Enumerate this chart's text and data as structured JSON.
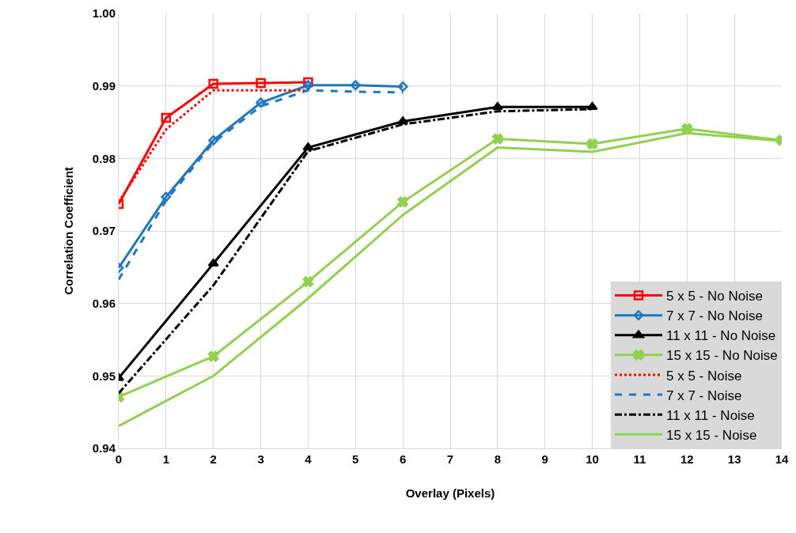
{
  "chart_data": {
    "type": "line",
    "xlabel": "Overlay (Pixels)",
    "ylabel": "Correlation Coefficient",
    "xlim": [
      0,
      14
    ],
    "xticks": [
      0,
      1,
      2,
      3,
      4,
      5,
      6,
      7,
      8,
      9,
      10,
      11,
      12,
      13,
      14
    ],
    "ylim": [
      0.94,
      1.0
    ],
    "yticks": [
      {
        "value": 0.94,
        "label": "0.94"
      },
      {
        "value": 0.95,
        "label": "0.95"
      },
      {
        "value": 0.96,
        "label": "0.96"
      },
      {
        "value": 0.97,
        "label": "0.97"
      },
      {
        "value": 0.98,
        "label": "0.98"
      },
      {
        "value": 0.99,
        "label": "0.99"
      },
      {
        "value": 1.0,
        "label": "1.00"
      }
    ],
    "grid": true,
    "legend": "bottom right",
    "series": [
      {
        "name": "5 x 5 - No Noise",
        "color": "#ff0000",
        "marker": "square",
        "line_style": "solid",
        "x": [
          0,
          1,
          2,
          3,
          4
        ],
        "values": [
          0.9737,
          0.9856,
          0.9903,
          0.9904,
          0.9905
        ]
      },
      {
        "name": "7 x 7 - No Noise",
        "color": "#1f77c4",
        "marker": "diamond",
        "line_style": "solid",
        "x": [
          0,
          1,
          2,
          3,
          4,
          5,
          6
        ],
        "values": [
          0.9649,
          0.9747,
          0.9825,
          0.9877,
          0.9901,
          0.9901,
          0.9899
        ]
      },
      {
        "name": "11 x 11 - No Noise",
        "color": "#000000",
        "marker": "triangle",
        "line_style": "solid",
        "x": [
          0,
          2,
          4,
          6,
          8,
          10
        ],
        "values": [
          0.9497,
          0.9655,
          0.9815,
          0.9851,
          0.9871,
          0.9871
        ]
      },
      {
        "name": "15 x 15 - No Noise",
        "color": "#92d050",
        "marker": "cross",
        "line_style": "solid",
        "x": [
          0,
          2,
          4,
          6,
          8,
          10,
          12,
          14
        ],
        "values": [
          0.9471,
          0.9527,
          0.963,
          0.974,
          0.9827,
          0.982,
          0.9841,
          0.9825
        ]
      },
      {
        "name": "5 x 5 - Noise",
        "color": "#ff0000",
        "marker": "none",
        "line_style": "dotted",
        "x": [
          0,
          1,
          2,
          3,
          4
        ],
        "values": [
          0.974,
          0.984,
          0.9894,
          0.9894,
          0.9894
        ]
      },
      {
        "name": "7 x 7 - Noise",
        "color": "#1f77c4",
        "marker": "none",
        "line_style": "dashed",
        "x": [
          0,
          1,
          2,
          3,
          4,
          5,
          6
        ],
        "values": [
          0.9633,
          0.9742,
          0.9822,
          0.9872,
          0.9894,
          0.9892,
          0.9891
        ]
      },
      {
        "name": "11 x 11 - Noise",
        "color": "#000000",
        "marker": "none",
        "line_style": "dashdot",
        "x": [
          0,
          2,
          4,
          6,
          8,
          10
        ],
        "values": [
          0.9476,
          0.9625,
          0.981,
          0.9847,
          0.9865,
          0.9868
        ]
      },
      {
        "name": "15 x 15 - Noise",
        "color": "#92d050",
        "marker": "none",
        "line_style": "solid",
        "x": [
          0,
          2,
          4,
          6,
          8,
          10,
          12,
          14
        ],
        "values": [
          0.9431,
          0.95,
          0.9607,
          0.9722,
          0.9815,
          0.9809,
          0.9835,
          0.9824
        ]
      }
    ]
  }
}
